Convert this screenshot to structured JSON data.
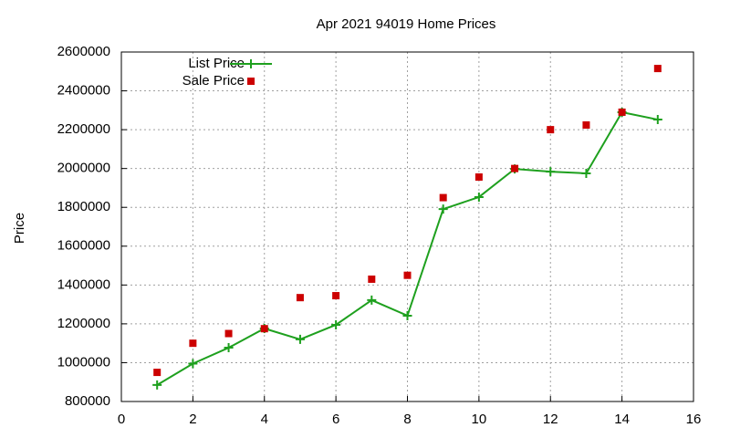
{
  "chart_data": {
    "type": "line",
    "title": "Apr 2021 94019 Home Prices",
    "y_label": "Price",
    "x": [
      1,
      2,
      3,
      4,
      5,
      6,
      7,
      8,
      9,
      10,
      11,
      12,
      13,
      14,
      15
    ],
    "series": [
      {
        "name": "List Price",
        "color": "#1ea01e",
        "mode": "lines+points",
        "values": [
          885000,
          995000,
          1077000,
          1176000,
          1120000,
          1195000,
          1322000,
          1242000,
          1791000,
          1853000,
          1998000,
          1984000,
          1975000,
          2290000,
          2252000
        ]
      },
      {
        "name": "Sale Price",
        "color": "#cc0000",
        "mode": "points",
        "values": [
          950000,
          1100000,
          1150000,
          1175000,
          1335000,
          1345000,
          1430000,
          1450000,
          1850000,
          1956000,
          2000000,
          2200000,
          2224000,
          2290000,
          2515000
        ]
      }
    ],
    "xlim": [
      0,
      16
    ],
    "xticks": [
      0,
      2,
      4,
      6,
      8,
      10,
      12,
      14,
      16
    ],
    "ylim": [
      800000,
      2600000
    ],
    "yticks": [
      800000,
      1000000,
      1200000,
      1400000,
      1600000,
      1800000,
      2000000,
      2200000,
      2400000,
      2600000
    ],
    "grid": true,
    "legend": "top-left"
  }
}
